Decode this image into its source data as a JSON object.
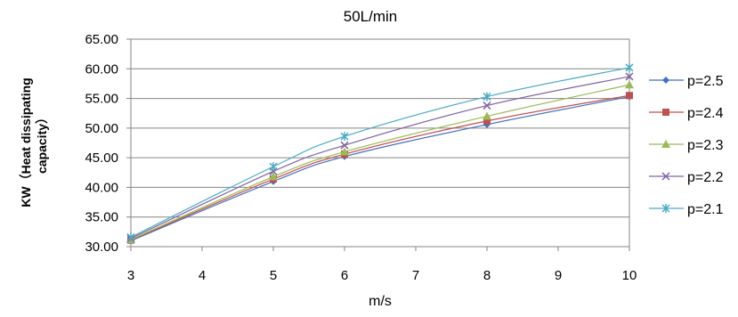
{
  "chart_data": {
    "type": "line",
    "title": "50L/min",
    "xlabel": "m/s",
    "ylabel_lines": [
      "KW（Heat dissipating",
      "capacity）"
    ],
    "x": [
      3,
      5,
      6,
      8,
      10
    ],
    "xticks": [
      "3",
      "4",
      "5",
      "6",
      "7",
      "8",
      "9",
      "10"
    ],
    "xlim": [
      3,
      10
    ],
    "ylim": [
      30,
      65
    ],
    "yticks": [
      "30.00",
      "35.00",
      "40.00",
      "45.00",
      "50.00",
      "55.00",
      "60.00",
      "65.00"
    ],
    "grid": true,
    "legend_position": "right",
    "series": [
      {
        "name": "p=2.5",
        "color": "#4472C4",
        "marker": "diamond",
        "values": [
          31.0,
          41.0,
          45.2,
          50.6,
          55.3
        ]
      },
      {
        "name": "p=2.4",
        "color": "#C0504D",
        "marker": "square",
        "values": [
          31.1,
          41.4,
          45.6,
          51.2,
          55.5
        ]
      },
      {
        "name": "p=2.3",
        "color": "#9BBB59",
        "marker": "triangle",
        "values": [
          31.2,
          41.8,
          46.0,
          52.0,
          57.3
        ]
      },
      {
        "name": "p=2.2",
        "color": "#8064A2",
        "marker": "x",
        "values": [
          31.4,
          42.7,
          47.1,
          53.8,
          58.7
        ]
      },
      {
        "name": "p=2.1",
        "color": "#4BACC6",
        "marker": "star",
        "values": [
          31.6,
          43.5,
          48.6,
          55.3,
          60.2
        ]
      }
    ]
  }
}
